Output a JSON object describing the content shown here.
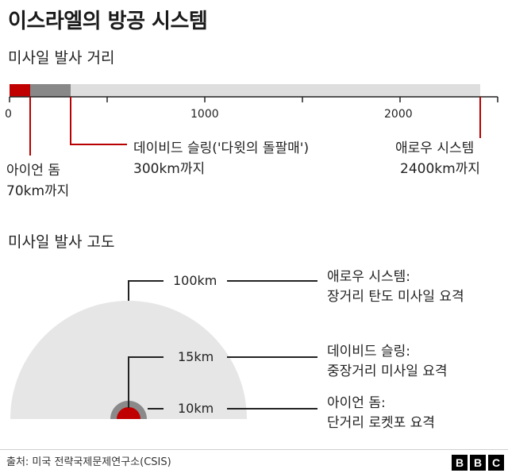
{
  "title": "이스라엘의 방공 시스템",
  "range_section": {
    "heading": "미사일 발사 거리",
    "axis_ticks": [
      "0",
      "1000",
      "2000"
    ],
    "systems": [
      {
        "name": "아이언 돔",
        "range": "70km까지",
        "range_km": 70,
        "color": "#c00000"
      },
      {
        "name": "데이비드 슬링('다윗의 돌팔매')",
        "range": "300km까지",
        "range_km": 300,
        "color": "#888888"
      },
      {
        "name": "애로우 시스템",
        "range": "2400km까지",
        "range_km": 2400,
        "color": "#dedede"
      }
    ]
  },
  "altitude_section": {
    "heading": "미사일 발사 고도",
    "levels": [
      {
        "altitude": "100km",
        "name": "애로우 시스템:",
        "desc": "장거리 탄도 미사일 요격"
      },
      {
        "altitude": "15km",
        "name": "데이비드 슬링:",
        "desc": "중장거리 미사일 요격"
      },
      {
        "altitude": "10km",
        "name": "아이언 돔:",
        "desc": "단거리 로켓포 요격"
      }
    ]
  },
  "colors": {
    "accent_red": "#b80000",
    "iron_dome": "#c00000",
    "david_sling": "#888888",
    "arrow": "#dedede"
  },
  "source": "출처: 미국 전략국제문제연구소(CSIS)",
  "logo": [
    "B",
    "B",
    "C"
  ]
}
